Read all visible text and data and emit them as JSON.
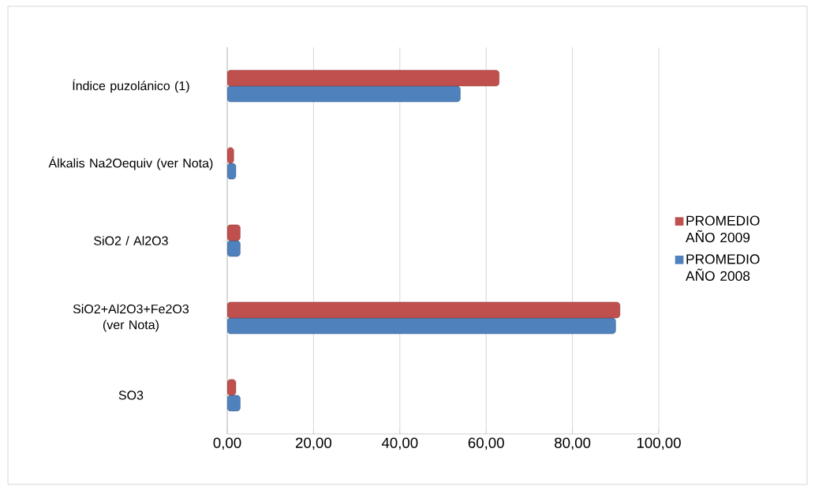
{
  "chart_data": {
    "type": "bar",
    "orientation": "horizontal",
    "categories": [
      "Índice puzolánico (1)",
      "Álkalis Na2Oequiv (ver Nota)",
      "SiO2 / Al2O3",
      "SiO2+Al2O3+Fe2O3 (ver Nota)",
      "SO3"
    ],
    "series": [
      {
        "name": "PROMEDIO AÑO 2008",
        "color": "#4f81bd",
        "values": [
          54,
          2,
          3,
          90,
          3
        ]
      },
      {
        "name": "PROMEDIO AÑO 2009",
        "color": "#c0504d",
        "values": [
          63,
          1.5,
          3,
          91,
          2
        ]
      }
    ],
    "xlim": [
      0,
      100
    ],
    "xticks": [
      {
        "value": 0,
        "label": "0,00"
      },
      {
        "value": 20,
        "label": "20,00"
      },
      {
        "value": 40,
        "label": "40,00"
      },
      {
        "value": 60,
        "label": "60,00"
      },
      {
        "value": 80,
        "label": "80,00"
      },
      {
        "value": 100,
        "label": "100,00"
      }
    ],
    "grid": "x",
    "legend": "right"
  }
}
